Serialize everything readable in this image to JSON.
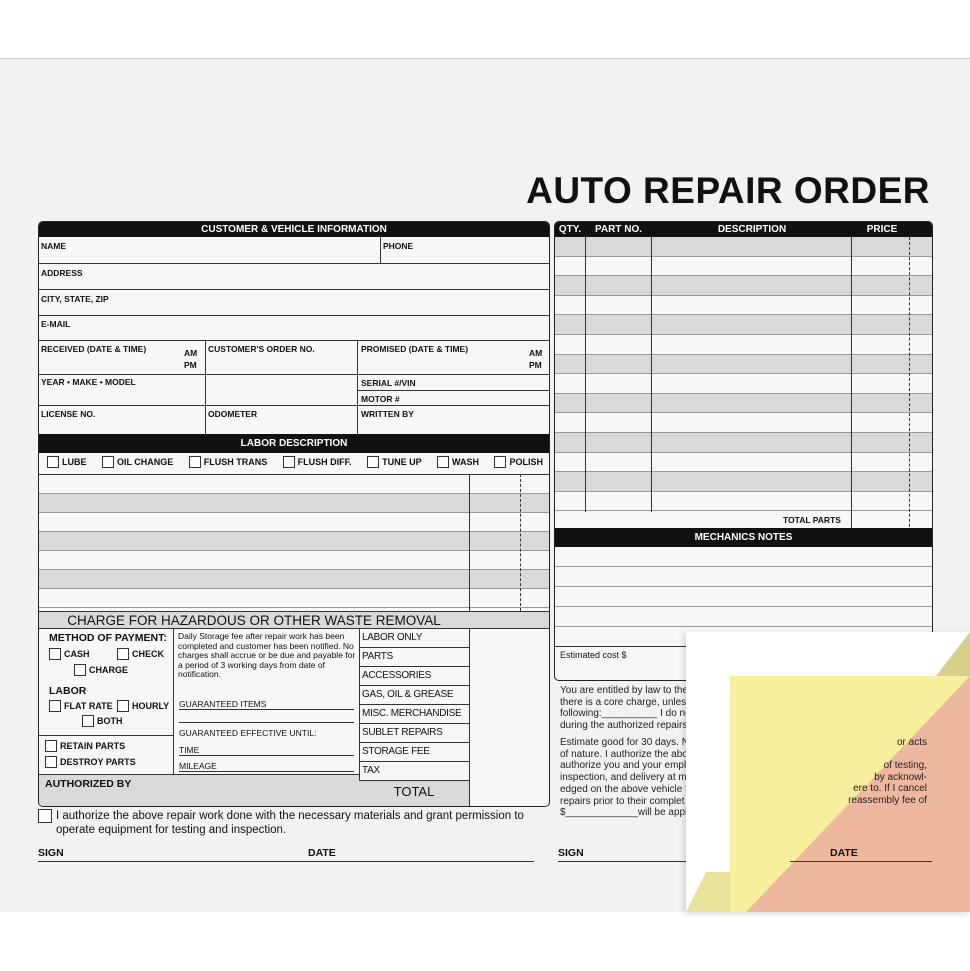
{
  "title": "AUTO REPAIR ORDER",
  "customer": {
    "header": "CUSTOMER & VEHICLE INFORMATION",
    "name": "NAME",
    "phone": "PHONE",
    "address": "ADDRESS",
    "city": "CITY, STATE, ZIP",
    "email": "E-MAIL",
    "received": "RECEIVED (DATE & TIME)",
    "am": "AM",
    "pm": "PM",
    "order_no": "CUSTOMER'S ORDER NO.",
    "promised": "PROMISED (DATE & TIME)",
    "ymm": "YEAR • MAKE • MODEL",
    "serial": "SERIAL #/VIN",
    "motor": "MOTOR #",
    "license": "LICENSE NO.",
    "odometer": "ODOMETER",
    "written_by": "WRITTEN BY"
  },
  "labor": {
    "header": "LABOR DESCRIPTION",
    "options": [
      "LUBE",
      "OIL CHANGE",
      "FLUSH TRANS",
      "FLUSH DIFF.",
      "TUNE UP",
      "WASH",
      "POLISH"
    ],
    "hazard": "CHARGE FOR HAZARDOUS OR OTHER WASTE REMOVAL"
  },
  "payment": {
    "title": "METHOD OF PAYMENT:",
    "cash": "CASH",
    "check": "CHECK",
    "charge": "CHARGE",
    "labor_title": "LABOR",
    "flat": "FLAT RATE",
    "hourly": "HOURLY",
    "both": "BOTH",
    "retain": "RETAIN PARTS",
    "destroy": "DESTROY PARTS",
    "authorized": "AUTHORIZED BY"
  },
  "storage": {
    "text": "Daily Storage fee after repair work has been completed and customer has been notified. No charges shall accrue or be due and payable for a period of 3 working days from date of notification.",
    "guaranteed": "GUARANTEED ITEMS",
    "until": "GUARANTEED EFFECTIVE UNTIL:",
    "time": "TIME",
    "mileage": "MILEAGE"
  },
  "totals": [
    "LABOR ONLY",
    "PARTS",
    "ACCESSORIES",
    "GAS, OIL & GREASE",
    "MISC. MERCHANDISE",
    "SUBLET REPAIRS",
    "STORAGE FEE",
    "TAX"
  ],
  "total": "TOTAL",
  "authorize_text": "I authorize the above repair work done with the necessary materials and grant permission to operate equipment for testing and inspection.",
  "sign": "SIGN",
  "date": "DATE",
  "parts": {
    "headers": [
      "QTY.",
      "PART NO.",
      "DESCRIPTION",
      "PRICE"
    ],
    "total_parts": "TOTAL PARTS",
    "mechanics": "MECHANICS NOTES",
    "estimated": "Estimated cost $"
  },
  "legal1": [
    "You are entitled by law to the",
    "there is a core charge, unless",
    "following:__________ I do not",
    "during the authorized repairs"
  ],
  "legal2": [
    "Estimate good for 30 days. N",
    "of nature. I authorize the abo",
    "authorize you and your empl",
    "inspection, and delivery at m",
    "edged on the above vehicle t",
    "repairs prior to their complet",
    "$_____________will be applie"
  ],
  "legal_peek": [
    "or acts",
    "of testing,",
    "by acknowl-",
    "ere to. If  I cancel",
    "reassembly fee of"
  ],
  "colors": {
    "yellow": "#f8ef9c",
    "pink": "#eeb8a0"
  }
}
